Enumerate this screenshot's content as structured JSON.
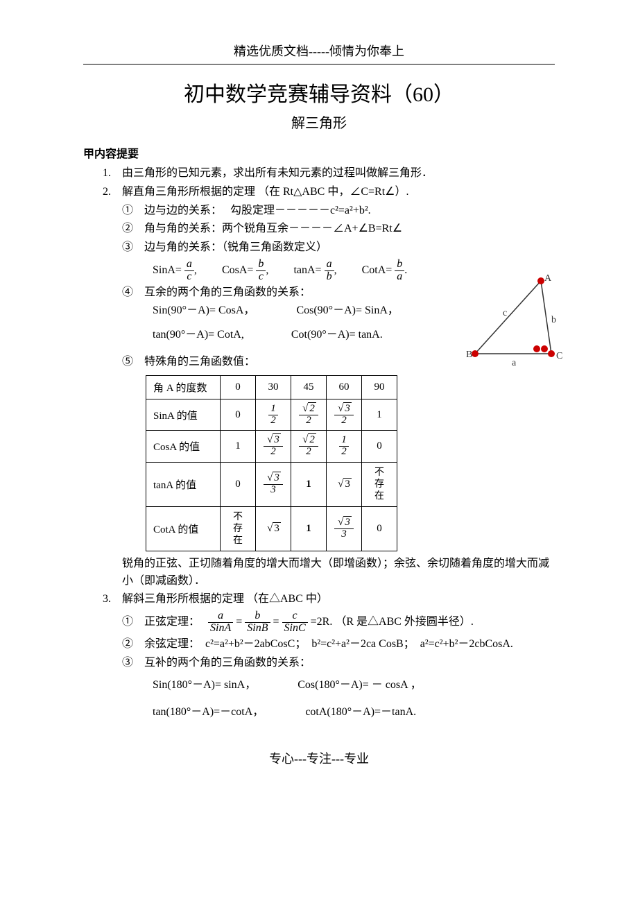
{
  "header": "精选优质文档-----倾情为你奉上",
  "title": "初中数学竞赛辅导资料（60）",
  "subtitle": "解三角形",
  "section_head": "甲内容提要",
  "items": {
    "p1": "1.　由三角形的已知元素，求出所有未知元素的过程叫做解三角形．",
    "p2": "2.　解直角三角形所根据的定理 （在 Rt△ABC 中，∠C=Rt∠）.",
    "p2_1": "①　边与边的关系：　 勾股定理－－－－－c²=a²+b².",
    "p2_2": "②　角与角的关系：两个锐角互余－－－－∠A+∠B=Rt∠",
    "p2_3": "③　边与角的关系：（锐角三角函数定义）",
    "p2_3_sin": "SinA=",
    "p2_3_cos": "CosA=",
    "p2_3_tan": "tanA=",
    "p2_3_cot": "CotA=",
    "frac_ac_n": "a",
    "frac_ac_d": "c",
    "frac_bc_n": "b",
    "frac_bc_d": "c",
    "frac_ab_n": "a",
    "frac_ab_d": "b",
    "frac_ba_n": "b",
    "frac_ba_d": "a",
    "p2_4": "④　互余的两个角的三角函数的关系：",
    "p2_4a": "Sin(90°－A)= CosA，",
    "p2_4b": "Cos(90°－A)= SinA，",
    "p2_4c": "tan(90°－A)= CotA,",
    "p2_4d": "Cot(90°－A)= tanA.",
    "p2_5": "⑤　特殊角的三角函数值：",
    "p_after_table": "锐角的正弦、正切随着角度的增大而增大（即增函数）；余弦、余切随着角度的增大而减小（即减函数）．",
    "p3": "3.　解斜三角形所根据的定理 （在△ABC 中）",
    "p3_1_label": "①　正弦定理：",
    "p3_1_tail": "=2R.    （R 是△ABC 外接圆半径）.",
    "sinA": "SinA",
    "sinB": "SinB",
    "sinC": "SinC",
    "p3_2": "②　余弦定理：　c²=a²+b²－2abCosC；　b²=c²+a²－2ca CosB；　a²=c²+b²－2cbCosA.",
    "p3_3": "③　互补的两个角的三角函数的关系：",
    "p3_3a": "Sin(180°－A)= sinA，",
    "p3_3b": "Cos(180°－A)= － cosA ，",
    "p3_3c": "tan(180°－A)=－cotA，",
    "p3_3d": "cotA(180°－A)=－tanA.",
    "footer": "专心---专注---专业"
  },
  "table": {
    "header": [
      "角 A 的度数",
      "0",
      "30",
      "45",
      "60",
      "90"
    ],
    "rows": [
      {
        "label": "SinA 的值",
        "cells": [
          "0",
          "half",
          "root2_2",
          "root3_2",
          "1"
        ]
      },
      {
        "label": "CosA 的值",
        "cells": [
          "1",
          "root3_2",
          "root2_2",
          "half",
          "0"
        ]
      },
      {
        "label": "tanA 的值",
        "cells": [
          "0",
          "root3_3",
          "bold1",
          "root3",
          "undef"
        ]
      },
      {
        "label": "CotA 的值",
        "cells": [
          "undef",
          "root3",
          "bold1",
          "root3_3",
          "0"
        ]
      }
    ],
    "undef_text": "不存在"
  },
  "triangle": {
    "labels": {
      "A": "A",
      "B": "B",
      "C": "C",
      "a": "a",
      "b": "b",
      "c": "c"
    },
    "colors": {
      "line": "#333333",
      "dot": "#cc0000",
      "text": "#333333"
    }
  }
}
